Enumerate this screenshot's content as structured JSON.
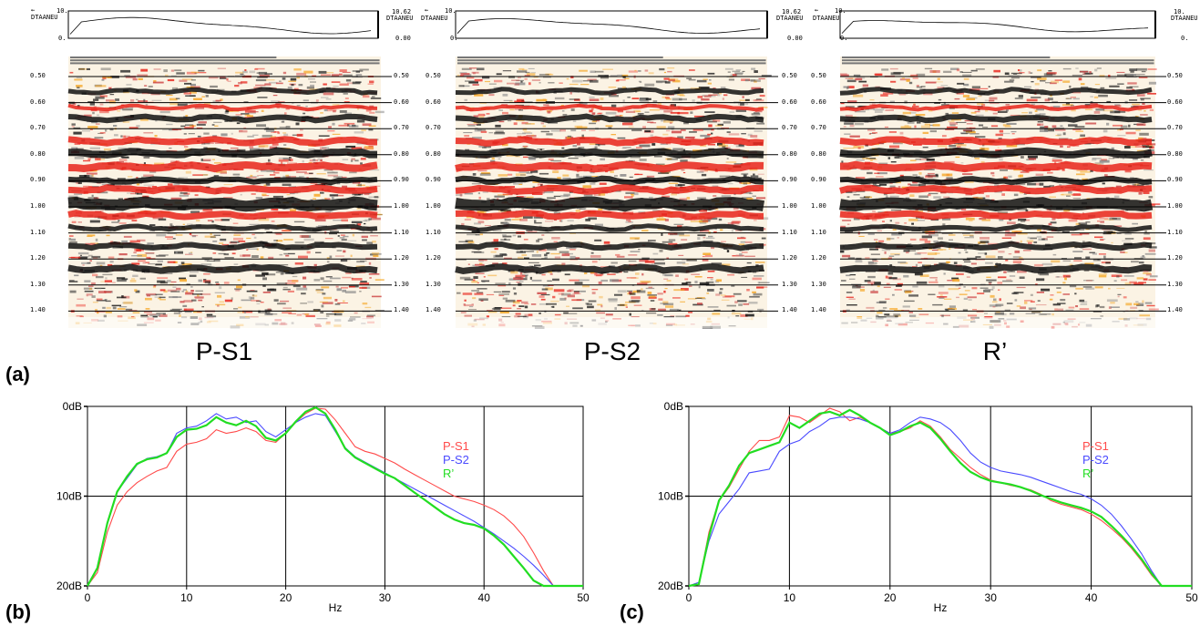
{
  "header": {
    "left_top": "10.",
    "left_mid": "DTAANEU",
    "left_zero": "0.",
    "mid_right_top": "10.62",
    "mid_right_zero": "0.00",
    "far_right_zero": "0."
  },
  "seismic_panels": [
    {
      "title": "P-S1",
      "id": "ps1"
    },
    {
      "title": "P-S2",
      "id": "ps2"
    },
    {
      "title": "R’",
      "id": "r"
    }
  ],
  "time_ticks": [
    "0.50",
    "0.60",
    "0.70",
    "0.80",
    "0.90",
    "1.00",
    "1.10",
    "1.20",
    "1.30",
    "1.40"
  ],
  "panel_labels": {
    "a": "(a)",
    "b": "(b)",
    "c": "(c)"
  },
  "chart_data": [
    {
      "type": "line",
      "xlabel": "Hz",
      "x_ticks": [
        "0",
        "10",
        "20",
        "30",
        "40",
        "50"
      ],
      "y_ticks": [
        "0dB",
        "10dB",
        "20dB"
      ],
      "xlim": [
        0,
        50
      ],
      "ylim": [
        0,
        20
      ],
      "legend_placement": "right",
      "series": [
        {
          "name": "P-S1",
          "color": "#ff4a4a",
          "x": [
            0,
            1,
            2,
            3,
            4,
            5,
            6,
            7,
            8,
            9,
            10,
            11,
            12,
            13,
            14,
            15,
            16,
            17,
            18,
            19,
            20,
            21,
            22,
            23,
            24,
            25,
            26,
            27,
            28,
            29,
            30,
            31,
            32,
            33,
            34,
            35,
            36,
            37,
            38,
            39,
            40,
            41,
            42,
            43,
            44,
            45,
            46,
            47,
            48,
            49,
            50
          ],
          "y": [
            20,
            18.5,
            14,
            11,
            9.5,
            8.5,
            7.8,
            7.2,
            6.8,
            5,
            4.2,
            4,
            3.6,
            2.6,
            3,
            2.8,
            2.4,
            2.8,
            3.8,
            4,
            3,
            1.8,
            0.8,
            0.2,
            0.3,
            1.5,
            3,
            4.5,
            5,
            5.3,
            5.8,
            6.3,
            7,
            7.6,
            8.2,
            8.8,
            9.4,
            10,
            10.3,
            10.6,
            11,
            11.5,
            12.2,
            13.2,
            14.5,
            16.3,
            18.3,
            20,
            20,
            20,
            20
          ]
        },
        {
          "name": "P-S2",
          "color": "#4a4aff",
          "x": [
            0,
            1,
            2,
            3,
            4,
            5,
            6,
            7,
            8,
            9,
            10,
            11,
            12,
            13,
            14,
            15,
            16,
            17,
            18,
            19,
            20,
            21,
            22,
            23,
            24,
            25,
            26,
            27,
            28,
            29,
            30,
            31,
            32,
            33,
            34,
            35,
            36,
            37,
            38,
            39,
            40,
            41,
            42,
            43,
            44,
            45,
            46,
            47,
            48,
            49,
            50
          ],
          "y": [
            20,
            18,
            13,
            9.5,
            8,
            6.5,
            5.8,
            5.6,
            5.2,
            3,
            2.4,
            2.2,
            1.6,
            0.8,
            1.4,
            1.2,
            1.8,
            1.6,
            2.8,
            3.4,
            2.6,
            1.8,
            1.2,
            0.8,
            1,
            2.8,
            4.6,
            5.6,
            6.2,
            6.8,
            7.4,
            8,
            8.6,
            9.2,
            9.8,
            10.4,
            11,
            11.6,
            12.2,
            12.8,
            13.5,
            14.2,
            15,
            15.8,
            16.7,
            17.7,
            18.8,
            20,
            20,
            20,
            20
          ]
        },
        {
          "name": "R’",
          "color": "#22dd22",
          "x": [
            0,
            1,
            2,
            3,
            4,
            5,
            6,
            7,
            8,
            9,
            10,
            11,
            12,
            13,
            14,
            15,
            16,
            17,
            18,
            19,
            20,
            21,
            22,
            23,
            24,
            25,
            26,
            27,
            28,
            29,
            30,
            31,
            32,
            33,
            34,
            35,
            36,
            37,
            38,
            39,
            40,
            41,
            42,
            43,
            44,
            45,
            46,
            47,
            48,
            49,
            50
          ],
          "y": [
            20,
            18,
            13,
            9.5,
            7.8,
            6.4,
            5.9,
            5.7,
            5.2,
            3.4,
            2.6,
            2.5,
            2.1,
            1.2,
            1.8,
            2.1,
            1.6,
            2.2,
            3.5,
            3.8,
            3,
            1.7,
            0.6,
            0.1,
            0.8,
            2.6,
            4.7,
            5.7,
            6.3,
            6.9,
            7.5,
            8,
            8.8,
            9.6,
            10.4,
            11.2,
            12,
            12.6,
            13,
            13.2,
            13.6,
            14.4,
            15.4,
            16.7,
            18,
            19.4,
            20,
            20,
            20,
            20,
            20
          ]
        }
      ]
    },
    {
      "type": "line",
      "xlabel": "Hz",
      "x_ticks": [
        "0",
        "10",
        "20",
        "30",
        "40",
        "50"
      ],
      "y_ticks": [
        "0dB",
        "10dB",
        "20dB"
      ],
      "xlim": [
        0,
        50
      ],
      "ylim": [
        0,
        20
      ],
      "legend_placement": "right",
      "series": [
        {
          "name": "P-S1",
          "color": "#ff4a4a",
          "x": [
            0,
            1,
            2,
            3,
            4,
            5,
            6,
            7,
            8,
            9,
            10,
            11,
            12,
            13,
            14,
            15,
            16,
            17,
            18,
            19,
            20,
            21,
            22,
            23,
            24,
            25,
            26,
            27,
            28,
            29,
            30,
            31,
            32,
            33,
            34,
            35,
            36,
            37,
            38,
            39,
            40,
            41,
            42,
            43,
            44,
            45,
            46,
            47,
            48,
            49,
            50
          ],
          "y": [
            20,
            19.8,
            14,
            10.5,
            9,
            7,
            5,
            3.8,
            3.8,
            3.4,
            1,
            1.2,
            1.8,
            1,
            0.2,
            0.6,
            1.6,
            1.2,
            1.8,
            2.4,
            3,
            2.8,
            2.4,
            1.6,
            2.2,
            3.4,
            4.8,
            5.8,
            6.8,
            7.6,
            8.2,
            8.5,
            8.8,
            9,
            9.3,
            9.8,
            10.5,
            10.9,
            11.2,
            11.5,
            12,
            12.7,
            13.6,
            14.6,
            15.8,
            17.2,
            18.8,
            20,
            20,
            20,
            20
          ]
        },
        {
          "name": "P-S2",
          "color": "#4a4aff",
          "x": [
            0,
            1,
            2,
            3,
            4,
            5,
            6,
            7,
            8,
            9,
            10,
            11,
            12,
            13,
            14,
            15,
            16,
            17,
            18,
            19,
            20,
            21,
            22,
            23,
            24,
            25,
            26,
            27,
            28,
            29,
            30,
            31,
            32,
            33,
            34,
            35,
            36,
            37,
            38,
            39,
            40,
            41,
            42,
            43,
            44,
            45,
            46,
            47,
            48,
            49,
            50
          ],
          "y": [
            20,
            19.6,
            15,
            12,
            10.6,
            9.2,
            7.4,
            7.2,
            7,
            5,
            4.2,
            3.8,
            2.8,
            2.2,
            1.4,
            1.2,
            1.2,
            1.4,
            1.8,
            2.4,
            3,
            2.6,
            1.8,
            1.2,
            1.4,
            1.8,
            2.6,
            3.8,
            5.2,
            6.2,
            6.8,
            7.2,
            7.4,
            7.6,
            7.9,
            8.3,
            8.7,
            9.1,
            9.5,
            9.8,
            10.3,
            11,
            12,
            13.3,
            14.8,
            16.4,
            18.3,
            20,
            20,
            20,
            20
          ]
        },
        {
          "name": "R’",
          "color": "#22dd22",
          "x": [
            0,
            1,
            2,
            3,
            4,
            5,
            6,
            7,
            8,
            9,
            10,
            11,
            12,
            13,
            14,
            15,
            16,
            17,
            18,
            19,
            20,
            21,
            22,
            23,
            24,
            25,
            26,
            27,
            28,
            29,
            30,
            31,
            32,
            33,
            34,
            35,
            36,
            37,
            38,
            39,
            40,
            41,
            42,
            43,
            44,
            45,
            46,
            47,
            48,
            49,
            50
          ],
          "y": [
            20,
            19.8,
            14.5,
            10.5,
            8.8,
            6.6,
            5.2,
            4.8,
            4.4,
            4,
            1.8,
            2.4,
            1.6,
            0.8,
            0.6,
            1,
            0.4,
            1,
            1.8,
            2.4,
            3.2,
            2.8,
            2.2,
            1.8,
            2.4,
            3.6,
            5,
            6.3,
            7.3,
            7.9,
            8.3,
            8.5,
            8.7,
            9,
            9.4,
            9.9,
            10.3,
            10.7,
            11,
            11.3,
            11.7,
            12.3,
            13.3,
            14.4,
            15.6,
            17,
            18.6,
            20,
            20,
            20,
            20
          ]
        }
      ]
    }
  ]
}
